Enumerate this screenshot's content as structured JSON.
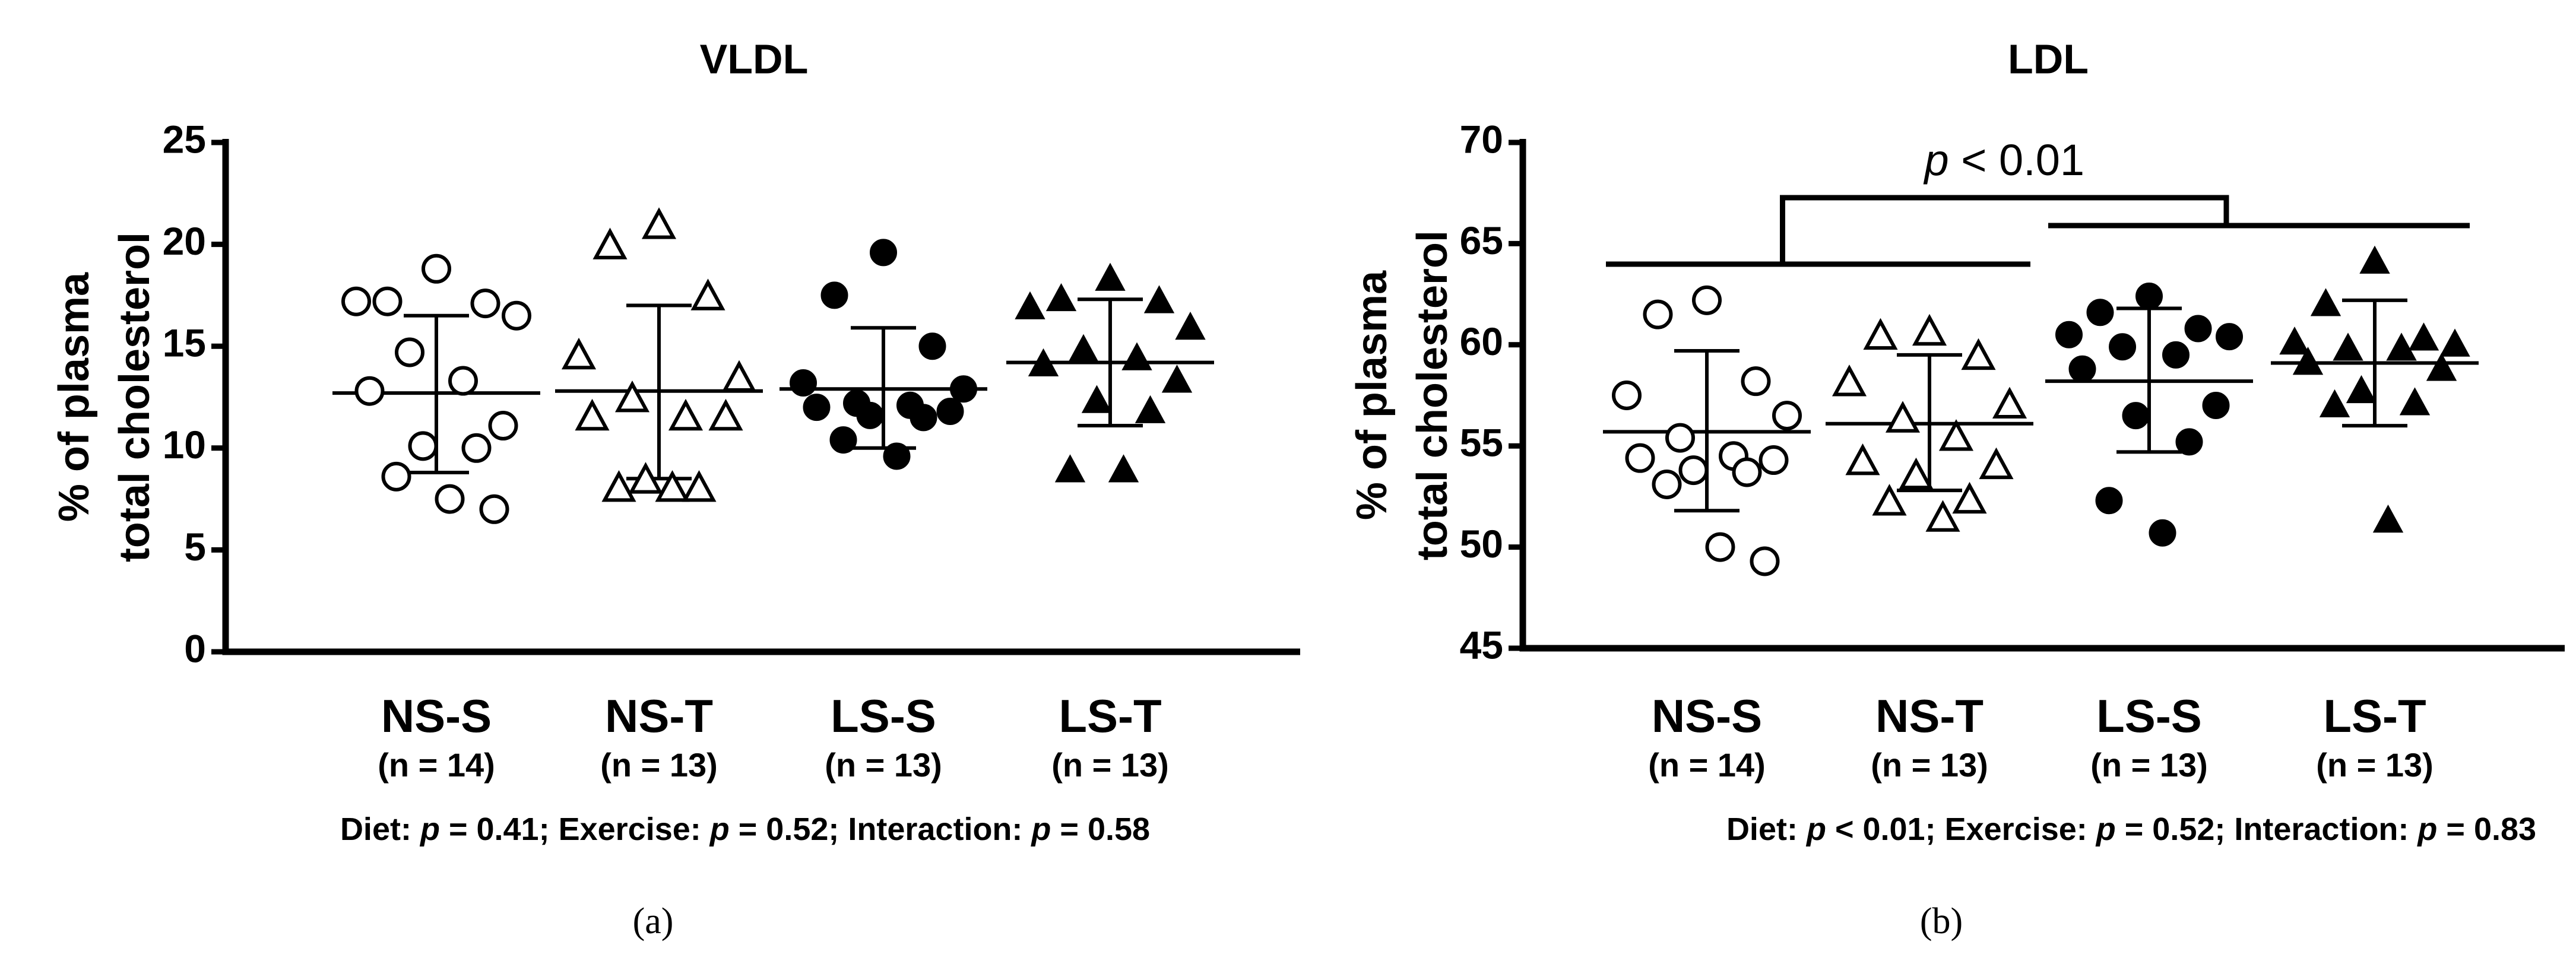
{
  "chart_data": [
    {
      "type": "scatter",
      "title": "VLDL",
      "ylabel_lines": [
        "% of plasma",
        "total cholesterol"
      ],
      "ylim": [
        0,
        25
      ],
      "yticks": [
        0,
        5,
        10,
        15,
        20,
        25
      ],
      "categories": [
        "NS-S",
        "NS-T",
        "LS-S",
        "LS-T"
      ],
      "n_labels": [
        "(n = 14)",
        "(n = 13)",
        "(n = 13)",
        "(n = 13)"
      ],
      "series": [
        {
          "name": "NS-S",
          "marker": "circle-open",
          "mean": 12.7,
          "sd_low": 8.8,
          "sd_high": 16.5,
          "values": [
            18.8,
            17.2,
            17.1,
            17.2,
            16.5,
            14.7,
            13.3,
            12.8,
            11.1,
            10.1,
            10.0,
            8.6,
            7.5,
            7.0
          ]
        },
        {
          "name": "NS-T",
          "marker": "triangle-open",
          "mean": 12.8,
          "sd_low": 8.5,
          "sd_high": 17.0,
          "values": [
            20.9,
            19.9,
            17.4,
            14.5,
            13.4,
            12.4,
            11.5,
            11.5,
            11.5,
            8.4,
            8.0,
            8.0,
            8.0
          ]
        },
        {
          "name": "LS-S",
          "marker": "circle-filled",
          "mean": 12.9,
          "sd_low": 10.0,
          "sd_high": 15.9,
          "values": [
            19.6,
            17.5,
            15.0,
            13.2,
            12.9,
            12.2,
            12.1,
            12.0,
            11.8,
            11.6,
            11.5,
            10.4,
            9.6
          ]
        },
        {
          "name": "LS-T",
          "marker": "triangle-filled",
          "mean": 14.2,
          "sd_low": 11.1,
          "sd_high": 17.3,
          "values": [
            18.3,
            17.3,
            17.2,
            16.9,
            15.9,
            14.8,
            14.4,
            14.1,
            13.3,
            12.3,
            11.8,
            8.9,
            8.9
          ]
        }
      ],
      "stats_line": {
        "diet": "0.41",
        "exercise": "0.52",
        "interaction": "0.58"
      },
      "panel_label": "(a)"
    },
    {
      "type": "scatter",
      "title": "LDL",
      "ylabel_lines": [
        "% of plasma",
        "total cholesterol"
      ],
      "ylim": [
        45,
        70
      ],
      "yticks": [
        45,
        50,
        55,
        60,
        65,
        70
      ],
      "categories": [
        "NS-S",
        "NS-T",
        "LS-S",
        "LS-T"
      ],
      "n_labels": [
        "(n = 14)",
        "(n = 13)",
        "(n = 13)",
        "(n = 13)"
      ],
      "series": [
        {
          "name": "NS-S",
          "marker": "circle-open",
          "mean": 55.7,
          "sd_low": 51.8,
          "sd_high": 59.7,
          "values": [
            62.2,
            61.5,
            58.2,
            57.5,
            56.5,
            55.4,
            54.5,
            54.4,
            54.3,
            53.8,
            53.7,
            53.1,
            50.0,
            49.3
          ]
        },
        {
          "name": "NS-T",
          "marker": "triangle-open",
          "mean": 56.1,
          "sd_low": 52.8,
          "sd_high": 59.5,
          "values": [
            60.6,
            60.4,
            59.4,
            58.1,
            57.0,
            56.3,
            55.4,
            54.2,
            54.0,
            53.5,
            52.3,
            52.2,
            51.4
          ]
        },
        {
          "name": "LS-S",
          "marker": "circle-filled",
          "mean": 58.2,
          "sd_low": 54.7,
          "sd_high": 61.8,
          "values": [
            62.4,
            61.6,
            60.8,
            60.5,
            60.4,
            59.9,
            59.5,
            58.8,
            57.0,
            56.5,
            55.2,
            52.3,
            50.7
          ]
        },
        {
          "name": "LS-T",
          "marker": "triangle-filled",
          "mean": 59.1,
          "sd_low": 56.0,
          "sd_high": 62.2,
          "values": [
            64.1,
            62.0,
            60.3,
            60.1,
            60.0,
            59.8,
            59.8,
            59.1,
            58.8,
            57.7,
            57.1,
            57.0,
            51.3
          ]
        }
      ],
      "annotation": {
        "text_p": "p",
        "text_rest": " < 0.01"
      },
      "stats_line": {
        "diet": "< 0.01",
        "exercise": "0.52",
        "interaction": "0.83"
      },
      "panel_label": "(b)"
    }
  ]
}
